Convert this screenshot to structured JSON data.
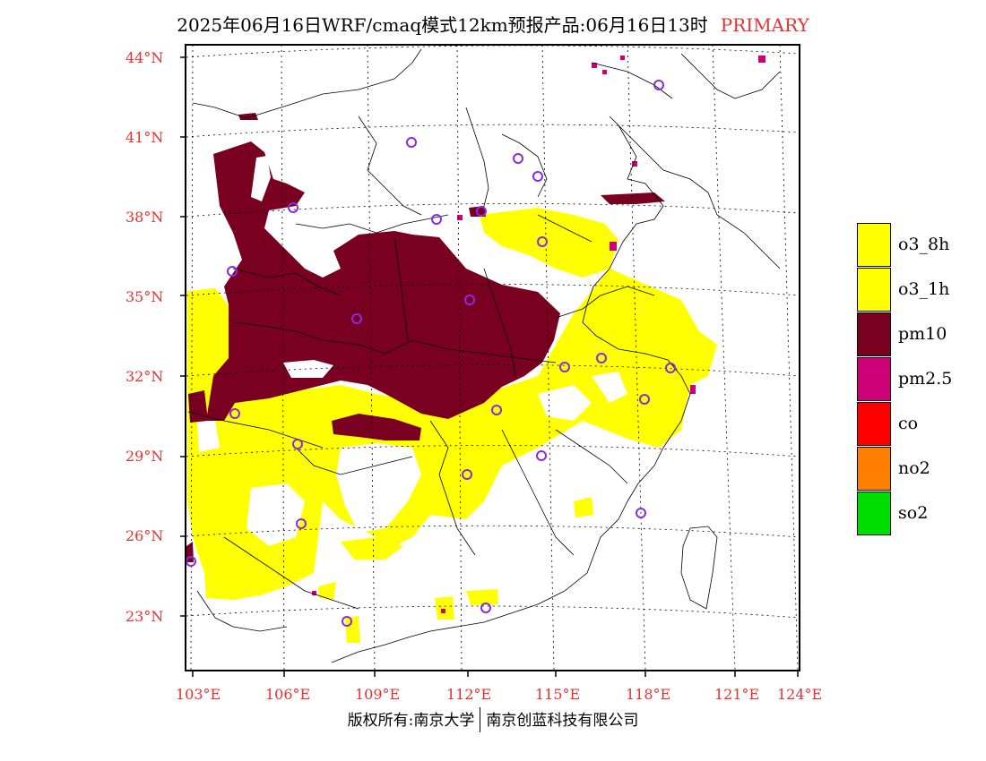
{
  "title": {
    "main": "2025年06月16日WRF/cmaq模式12km预报产品:06月16日13时",
    "tag": "PRIMARY"
  },
  "map": {
    "lat_labels": [
      "44°N",
      "41°N",
      "38°N",
      "35°N",
      "32°N",
      "29°N",
      "26°N",
      "23°N"
    ],
    "lon_labels": [
      "103°E",
      "106°E",
      "109°E",
      "112°E",
      "115°E",
      "118°E",
      "121°E",
      "124°E"
    ],
    "marker_color": "#8a2be2"
  },
  "legend": {
    "items": [
      {
        "label": "o3_8h",
        "color": "#ffff00"
      },
      {
        "label": "o3_1h",
        "color": "#ffff00"
      },
      {
        "label": "pm10",
        "color": "#7a0022"
      },
      {
        "label": "pm2.5",
        "color": "#cc0077"
      },
      {
        "label": "co",
        "color": "#ff0000"
      },
      {
        "label": "no2",
        "color": "#ff8000"
      },
      {
        "label": "so2",
        "color": "#00dd00"
      }
    ]
  },
  "footer": {
    "left": "版权所有:南京大学",
    "right": "南京创蓝科技有限公司"
  }
}
